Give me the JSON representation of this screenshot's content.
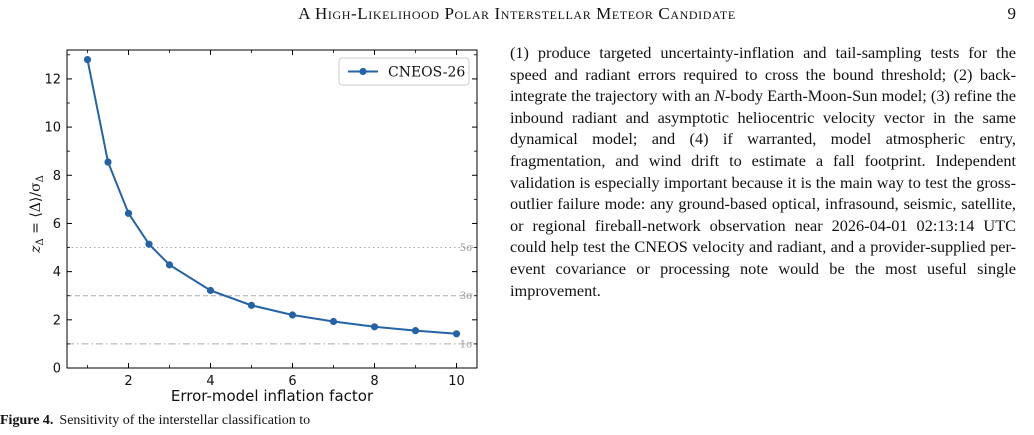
{
  "header": {
    "title": "A High-Likelihood Polar Interstellar Meteor Candidate",
    "page_number": "9"
  },
  "figure": {
    "caption_label": "Figure 4.",
    "caption_text": "Sensitivity of the interstellar classification to",
    "chart_data": {
      "type": "line",
      "xlabel": "Error-model inflation factor",
      "ylabel": "z_Δ = ⟨Δ⟩/σ_Δ",
      "xlim": [
        0.5,
        10.5
      ],
      "ylim": [
        0,
        13.2
      ],
      "x_ticks": [
        2,
        4,
        6,
        8,
        10
      ],
      "y_ticks": [
        0,
        2,
        4,
        6,
        8,
        10,
        12
      ],
      "grid": false,
      "legend_position": "top-right",
      "series": [
        {
          "name": "CNEOS-26",
          "color": "#2463a6",
          "marker": "circle",
          "x": [
            1,
            1.5,
            2,
            2.5,
            3,
            4,
            5,
            6,
            7,
            8,
            9,
            10
          ],
          "y": [
            12.8,
            8.55,
            6.42,
            5.14,
            4.28,
            3.22,
            2.6,
            2.2,
            1.93,
            1.71,
            1.55,
            1.42
          ]
        }
      ],
      "reference_lines": [
        {
          "y": 5,
          "label": "5σ",
          "style": "dotted",
          "color": "#aaaaaa"
        },
        {
          "y": 3,
          "label": "3σ",
          "style": "dashed",
          "color": "#aaaaaa"
        },
        {
          "y": 1,
          "label": "1σ",
          "style": "dashdot",
          "color": "#aaaaaa"
        }
      ]
    }
  },
  "body": {
    "segments": [
      "(1) produce targeted uncertainty-inflation and tail-sampling tests for the speed and radiant errors required to cross the bound threshold; (2) back-integrate the trajectory with an ",
      "N",
      "-body Earth-Moon-Sun model; (3) refine the inbound radiant and asymptotic heliocentric velocity vector in the same dynamical model; and (4) if warranted, model atmospheric entry, fragmentation, and wind drift to estimate a fall footprint. Independent validation is especially important because it is the main way to test the gross-outlier failure mode: any ground-based optical, infrasound, seismic, satellite, or regional fireball-network observation near 2026-04-01 02:13:14 UTC could help test the CNEOS velocity and radiant, and a provider-supplied per-event covariance or processing note would be the most useful single improvement."
    ]
  }
}
